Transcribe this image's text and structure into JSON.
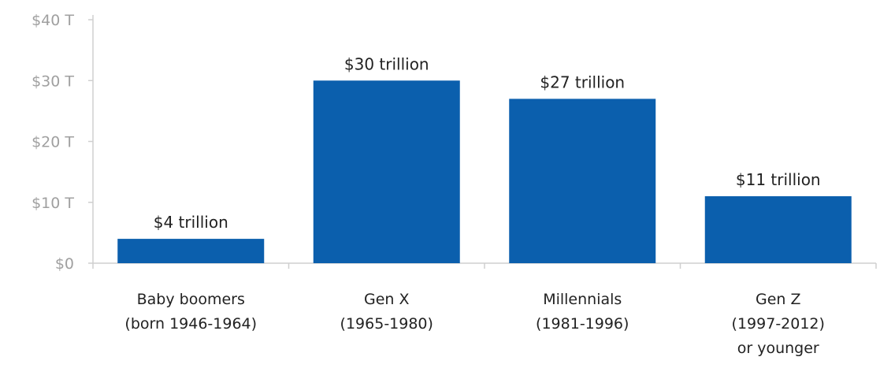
{
  "chart_data": {
    "type": "bar",
    "title": "",
    "xlabel": "",
    "ylabel": "",
    "ylim": [
      0,
      40
    ],
    "yticks": [
      {
        "value": 0,
        "label": "$0"
      },
      {
        "value": 10,
        "label": "$10 T"
      },
      {
        "value": 20,
        "label": "$20 T"
      },
      {
        "value": 30,
        "label": "$30 T"
      },
      {
        "value": 40,
        "label": "$40 T"
      }
    ],
    "categories": [
      [
        "Baby boomers",
        "(born 1946-1964)"
      ],
      [
        "Gen X",
        "(1965-1980)"
      ],
      [
        "Millennials",
        "(1981-1996)"
      ],
      [
        "Gen Z",
        "(1997-2012)",
        "or younger"
      ]
    ],
    "values": [
      4,
      30,
      27,
      11
    ],
    "data_labels": [
      "$4 trillion",
      "$30 trillion",
      "$27 trillion",
      "$11 trillion"
    ],
    "grid": false,
    "legend": "none",
    "colors": {
      "bar": "#0b5fad",
      "axis": "#cfcfcf",
      "tick_text": "#a0a0a0",
      "label_text": "#222222"
    }
  }
}
